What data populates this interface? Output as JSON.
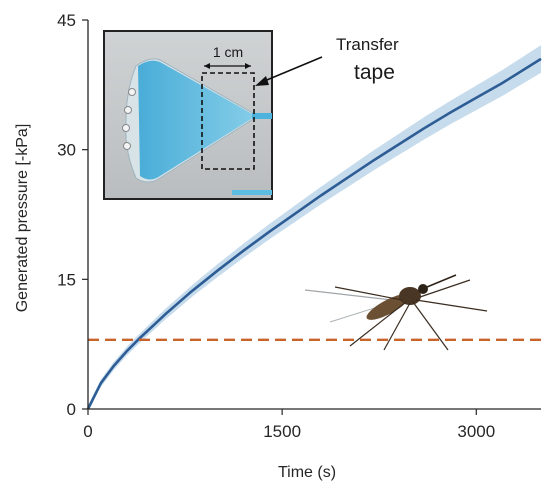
{
  "chart_data": {
    "type": "line",
    "xlabel": "Time (s)",
    "ylabel": "Generated pressure [-kPa]",
    "xlim": [
      0,
      3500
    ],
    "ylim": [
      0,
      45
    ],
    "xticks": [
      0,
      1500,
      3000
    ],
    "yticks": [
      0,
      15,
      30,
      45
    ],
    "grid": false,
    "series": [
      {
        "color": "#2e5d95",
        "band_color": "#bcd6ea",
        "x": [
          0,
          100,
          200,
          300,
          400,
          500,
          600,
          700,
          800,
          900,
          1000,
          1200,
          1400,
          1600,
          1800,
          2000,
          2200,
          2400,
          2600,
          2800,
          3000,
          3200,
          3500
        ],
        "y": [
          0,
          3.0,
          5.0,
          6.7,
          8.2,
          9.6,
          11.0,
          12.3,
          13.6,
          14.8,
          16.0,
          18.3,
          20.5,
          22.6,
          24.7,
          26.7,
          28.7,
          30.6,
          32.5,
          34.3,
          36.0,
          37.7,
          40.5
        ]
      },
      {
        "color": "#c8642a",
        "style": "dashed",
        "x": [
          0,
          3500
        ],
        "y": [
          8,
          8
        ]
      }
    ],
    "annotations": {
      "scale_label": "1 cm",
      "callout_label_1": "Transfer",
      "callout_label_2": "tape"
    }
  }
}
